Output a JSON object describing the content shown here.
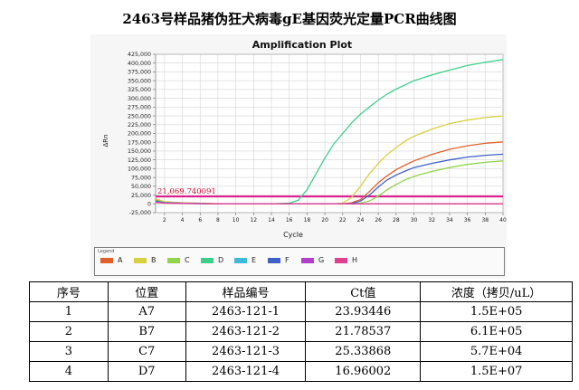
{
  "page_title": "2463号样品猪伪狂犬病毒gE基因荧光定量PCR曲线图",
  "legend_title": "Legend",
  "threshold_label": "21,069.740091",
  "chart_data": {
    "type": "line",
    "title": "Amplification Plot",
    "xlabel": "Cycle",
    "ylabel": "ΔRn",
    "xlim": [
      1,
      40
    ],
    "ylim": [
      -25000,
      425000
    ],
    "xticks": [
      2,
      4,
      6,
      8,
      10,
      12,
      14,
      16,
      18,
      20,
      22,
      24,
      26,
      28,
      30,
      32,
      34,
      36,
      38,
      40
    ],
    "yticks": [
      -25000,
      0,
      25000,
      50000,
      75000,
      100000,
      125000,
      150000,
      175000,
      200000,
      225000,
      250000,
      275000,
      300000,
      325000,
      350000,
      375000,
      400000,
      425000
    ],
    "ytick_labels": [
      "-25,000",
      "0",
      "25,000",
      "50,000",
      "75,000",
      "100,000",
      "125,000",
      "150,000",
      "175,000",
      "200,000",
      "225,000",
      "250,000",
      "275,000",
      "300,000",
      "325,000",
      "350,000",
      "375,000",
      "400,000",
      "425,000"
    ],
    "threshold": 21069.740091,
    "grid": true,
    "legend_position": "bottom",
    "x": [
      1,
      2,
      4,
      6,
      8,
      10,
      12,
      14,
      16,
      17,
      18,
      19,
      20,
      21,
      22,
      23,
      24,
      25,
      26,
      27,
      28,
      29,
      30,
      32,
      34,
      36,
      38,
      40
    ],
    "series": [
      {
        "name": "A",
        "color": "#e0602c",
        "values": [
          12000,
          5000,
          3000,
          1500,
          500,
          0,
          0,
          0,
          0,
          0,
          0,
          0,
          0,
          0,
          0,
          3000,
          12000,
          35000,
          60000,
          80000,
          97000,
          110000,
          122000,
          140000,
          155000,
          165000,
          172000,
          176000
        ]
      },
      {
        "name": "B",
        "color": "#d8d040",
        "values": [
          14000,
          6000,
          3000,
          1500,
          500,
          0,
          0,
          0,
          0,
          0,
          0,
          0,
          0,
          0,
          2000,
          18000,
          50000,
          85000,
          115000,
          140000,
          160000,
          178000,
          192000,
          212000,
          228000,
          238000,
          245000,
          250000
        ]
      },
      {
        "name": "C",
        "color": "#8fd44a",
        "values": [
          8000,
          3000,
          2000,
          1000,
          0,
          0,
          0,
          0,
          0,
          0,
          0,
          0,
          0,
          0,
          0,
          0,
          2000,
          8000,
          22000,
          40000,
          55000,
          68000,
          78000,
          92000,
          103000,
          112000,
          118000,
          122000
        ]
      },
      {
        "name": "D",
        "color": "#3dcf8a",
        "values": [
          9000,
          4000,
          2000,
          1000,
          0,
          0,
          0,
          0,
          2000,
          10000,
          40000,
          85000,
          130000,
          170000,
          200000,
          230000,
          255000,
          275000,
          295000,
          312000,
          326000,
          338000,
          350000,
          366000,
          380000,
          393000,
          402000,
          410000
        ]
      },
      {
        "name": "E",
        "color": "#40b8d8",
        "values": [
          6000,
          3000,
          1500,
          800,
          0,
          0,
          0,
          0,
          0,
          0,
          0,
          0,
          0,
          0,
          0,
          0,
          0,
          0,
          0,
          0,
          0,
          0,
          0,
          0,
          0,
          0,
          0,
          0
        ]
      },
      {
        "name": "F",
        "color": "#4060c8",
        "values": [
          7000,
          3000,
          1500,
          800,
          0,
          0,
          0,
          0,
          0,
          0,
          0,
          0,
          0,
          0,
          0,
          1000,
          8000,
          25000,
          48000,
          68000,
          82000,
          93000,
          103000,
          115000,
          125000,
          133000,
          138000,
          141000
        ]
      },
      {
        "name": "G",
        "color": "#b040c8",
        "values": [
          5000,
          2500,
          1500,
          800,
          0,
          0,
          0,
          0,
          0,
          0,
          0,
          0,
          0,
          0,
          0,
          0,
          0,
          0,
          0,
          0,
          0,
          0,
          0,
          0,
          0,
          0,
          0,
          0
        ]
      },
      {
        "name": "H",
        "color": "#e04090",
        "values": [
          4000,
          2000,
          1000,
          500,
          0,
          0,
          0,
          0,
          0,
          0,
          0,
          0,
          0,
          0,
          0,
          0,
          0,
          0,
          0,
          0,
          0,
          0,
          0,
          0,
          0,
          0,
          0,
          0
        ]
      }
    ]
  },
  "table": {
    "headers": [
      "序号",
      "位置",
      "样品编号",
      "Ct值",
      "浓度（拷贝/uL）"
    ],
    "rows": [
      [
        "1",
        "A7",
        "2463-121-1",
        "23.93446",
        "1.5E+05"
      ],
      [
        "2",
        "B7",
        "2463-121-2",
        "21.78537",
        "6.1E+05"
      ],
      [
        "3",
        "C7",
        "2463-121-3",
        "25.33868",
        "5.7E+04"
      ],
      [
        "4",
        "D7",
        "2463-121-4",
        "16.96002",
        "1.5E+07"
      ]
    ]
  }
}
